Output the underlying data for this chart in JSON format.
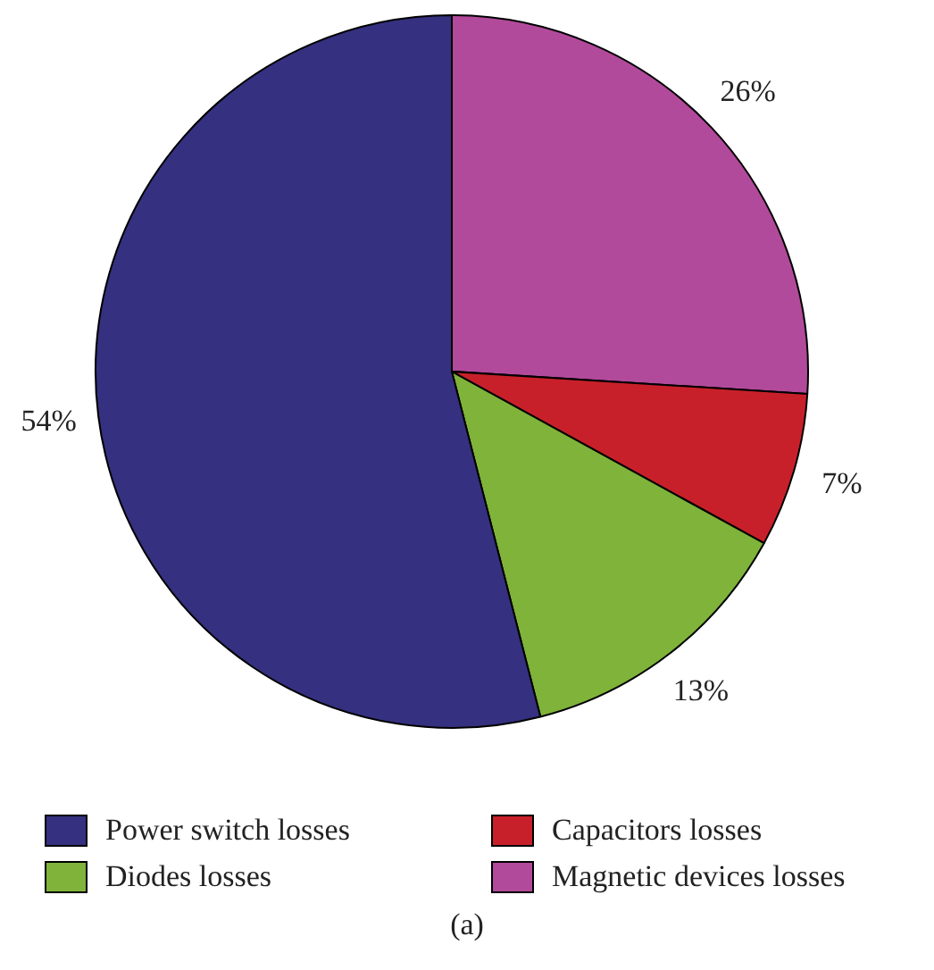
{
  "chart_data": {
    "type": "pie",
    "categories": [
      "Magnetic devices losses",
      "Capacitors losses",
      "Diodes losses",
      "Power switch losses"
    ],
    "values": [
      26,
      7,
      13,
      54
    ],
    "colors": [
      "#b24a9b",
      "#c8202a",
      "#7fb33a",
      "#35307f"
    ],
    "value_labels": [
      "26%",
      "7%",
      "13%",
      "54%"
    ],
    "legend": "bottom",
    "annotations": [
      "(a)"
    ]
  }
}
